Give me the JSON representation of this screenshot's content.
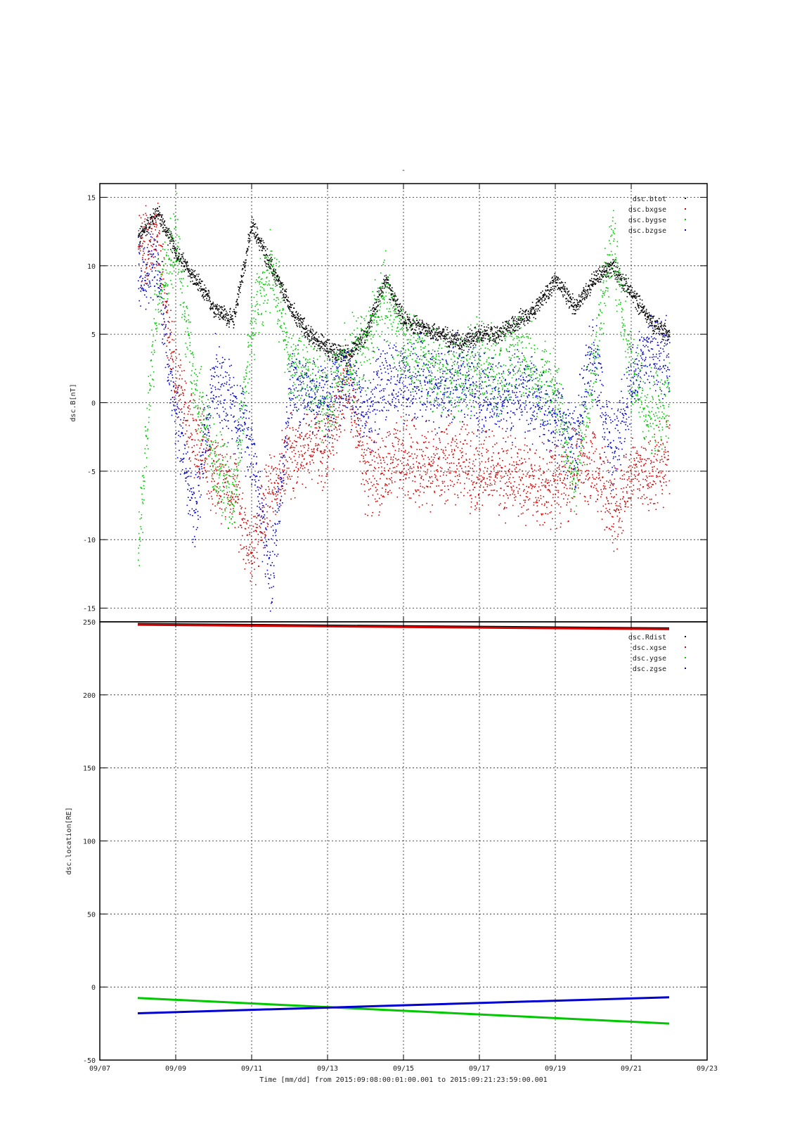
{
  "chart_data": [
    {
      "type": "scatter",
      "title": "-",
      "ylabel": "dsc.B[nT]",
      "ylim": [
        -16,
        16
      ],
      "yticks": [
        15,
        10,
        5,
        0,
        -5,
        -10,
        -15
      ],
      "grid": true,
      "legend_position": "top-right",
      "series": [
        {
          "name": "dsc.btot",
          "color": "#000000",
          "x": [
            "09/08",
            "09/08.5",
            "09/09",
            "09/09.5",
            "09/10",
            "09/10.5",
            "09/11",
            "09/11.5",
            "09/12",
            "09/12.5",
            "09/13",
            "09/13.5",
            "09/14",
            "09/14.5",
            "09/15",
            "09/15.5",
            "09/16",
            "09/16.5",
            "09/17",
            "09/17.5",
            "09/18",
            "09/18.5",
            "09/19",
            "09/19.5",
            "09/20",
            "09/20.5",
            "09/21",
            "09/21.5",
            "09/22"
          ],
          "values": [
            12,
            14,
            11,
            9,
            7,
            6,
            13,
            10,
            7,
            5,
            4,
            3.5,
            5,
            9,
            6,
            5.5,
            5,
            4.5,
            5,
            5,
            6,
            7,
            9,
            7,
            9,
            10,
            8,
            6,
            5
          ]
        },
        {
          "name": "dsc.bxgse",
          "color": "#d40000",
          "x": [
            "09/08",
            "09/08.5",
            "09/09",
            "09/09.5",
            "09/10",
            "09/10.5",
            "09/11",
            "09/11.5",
            "09/12",
            "09/12.5",
            "09/13",
            "09/13.5",
            "09/14",
            "09/14.5",
            "09/15",
            "09/15.5",
            "09/16",
            "09/16.5",
            "09/17",
            "09/17.5",
            "09/18",
            "09/18.5",
            "09/19",
            "09/19.5",
            "09/20",
            "09/20.5",
            "09/21",
            "09/21.5",
            "09/22"
          ],
          "values": [
            11,
            12,
            2,
            -3,
            -5,
            -6,
            -11,
            -6,
            -4,
            -3,
            -3.5,
            2,
            -5,
            -5,
            -4,
            -4.5,
            -4.5,
            -4,
            -5,
            -5,
            -5.5,
            -6,
            -6,
            -5,
            -4,
            -8,
            -5,
            -5,
            -4
          ]
        },
        {
          "name": "dsc.bygse",
          "color": "#00c800",
          "x": [
            "09/08",
            "09/08.5",
            "09/09",
            "09/09.5",
            "09/10",
            "09/10.5",
            "09/11",
            "09/11.5",
            "09/12",
            "09/12.5",
            "09/13",
            "09/13.5",
            "09/14",
            "09/14.5",
            "09/15",
            "09/15.5",
            "09/16",
            "09/16.5",
            "09/17",
            "09/17.5",
            "09/18",
            "09/18.5",
            "09/19",
            "09/19.5",
            "09/20",
            "09/20.5",
            "09/21",
            "09/21.5",
            "09/22"
          ],
          "values": [
            -11,
            8,
            12,
            1,
            -4,
            -7,
            6,
            10,
            3,
            2,
            0,
            3,
            4,
            8,
            4,
            3,
            2,
            2,
            3,
            2,
            4,
            2,
            1,
            -6,
            3,
            12,
            2,
            -1,
            0
          ]
        },
        {
          "name": "dsc.bzgse",
          "color": "#0000d0",
          "x": [
            "09/08",
            "09/08.5",
            "09/09",
            "09/09.5",
            "09/10",
            "09/10.5",
            "09/11",
            "09/11.5",
            "09/12",
            "09/12.5",
            "09/13",
            "09/13.5",
            "09/14",
            "09/14.5",
            "09/15",
            "09/15.5",
            "09/16",
            "09/16.5",
            "09/17",
            "09/17.5",
            "09/18",
            "09/18.5",
            "09/19",
            "09/19.5",
            "09/20",
            "09/20.5",
            "09/21",
            "09/21.5",
            "09/22"
          ],
          "values": [
            9,
            10,
            -1,
            -8,
            2,
            0,
            -3,
            -13,
            1,
            1,
            0,
            2,
            -1,
            2,
            1,
            2,
            1,
            2,
            1,
            0,
            1,
            0,
            -1,
            -3,
            4,
            -4,
            2,
            4,
            3
          ]
        }
      ]
    },
    {
      "type": "line",
      "ylabel": "dsc.location[RE]",
      "ylim": [
        -50,
        250
      ],
      "yticks": [
        250,
        200,
        150,
        100,
        50,
        0,
        -50
      ],
      "grid": true,
      "legend_position": "top-right",
      "series": [
        {
          "name": "dsc.Rdist",
          "color": "#000000",
          "x": [
            "09/08",
            "09/22"
          ],
          "values": [
            248.5,
            245.5
          ]
        },
        {
          "name": "dsc.xgse",
          "color": "#d40000",
          "x": [
            "09/08",
            "09/22"
          ],
          "values": [
            248,
            245
          ]
        },
        {
          "name": "dsc.ygse",
          "color": "#00c800",
          "x": [
            "09/08",
            "09/22"
          ],
          "values": [
            -7.5,
            -25
          ]
        },
        {
          "name": "dsc.zgse",
          "color": "#0000d0",
          "x": [
            "09/08",
            "09/22"
          ],
          "values": [
            -18,
            -7
          ]
        }
      ]
    }
  ],
  "x_axis": {
    "ticks": [
      "09/07",
      "09/09",
      "09/11",
      "09/13",
      "09/15",
      "09/17",
      "09/19",
      "09/21",
      "09/23"
    ],
    "xlim": [
      "09/07",
      "09/23"
    ],
    "xlabel": "Time [mm/dd]  from 2015:09:08:00:01:00.001  to  2015:09:21:23:59:00.001"
  }
}
